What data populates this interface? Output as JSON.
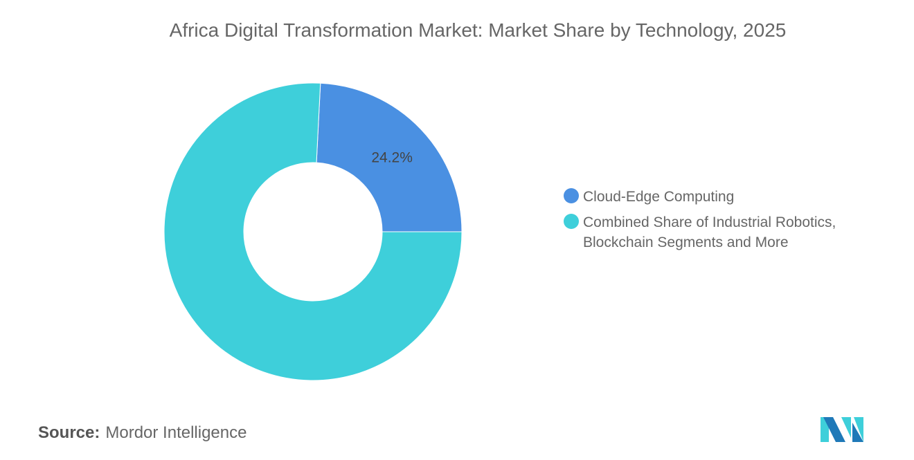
{
  "chart_data": {
    "type": "pie",
    "donut": true,
    "title": "Africa Digital Transformation Market: Market Share by Technology, 2025",
    "slices": [
      {
        "label": "Cloud-Edge Computing",
        "value": 24.2,
        "data_label": "24.2%",
        "color": "#4a90e2"
      },
      {
        "label": "Combined Share of Industrial Robotics, Blockchain Segments and More",
        "value": 75.8,
        "data_label": "",
        "color": "#3ecfda"
      }
    ],
    "legend_placement": "right"
  },
  "source": {
    "label": "Source:",
    "value": "Mordor Intelligence"
  },
  "logo": {
    "text": "Mordor Intelligence",
    "colors": [
      "#1f79b8",
      "#3ecfda"
    ]
  }
}
